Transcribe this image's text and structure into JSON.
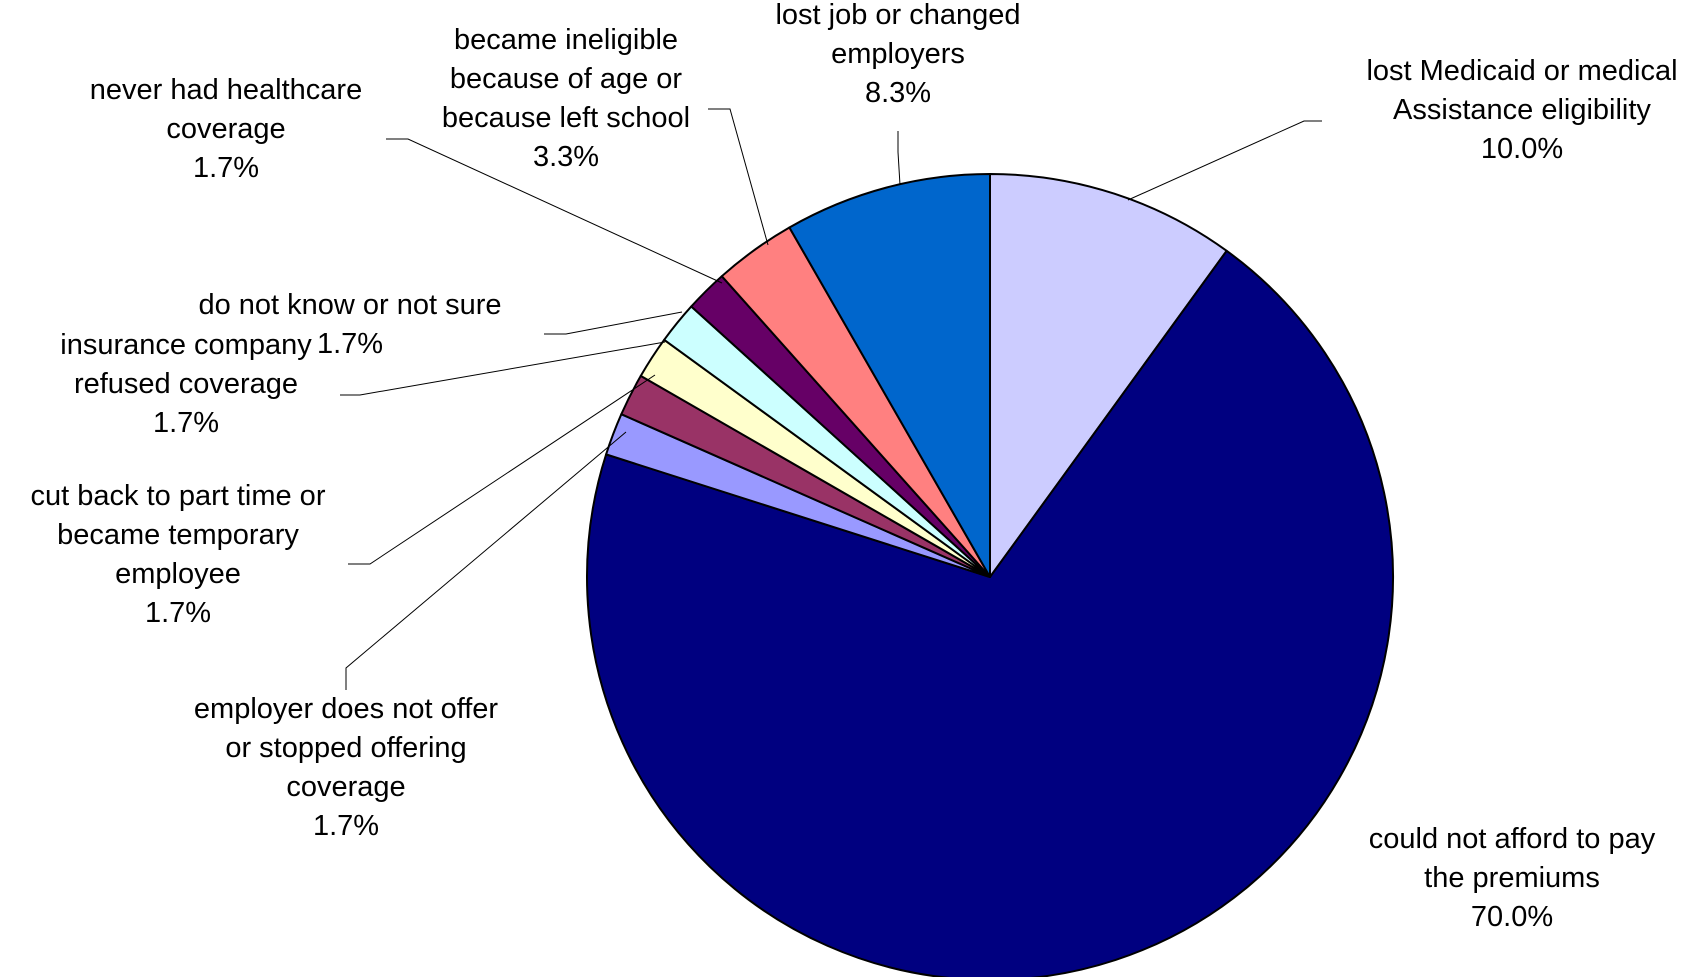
{
  "chart_data": {
    "type": "pie",
    "title": "",
    "start_angle_deg": 270,
    "direction": "clockwise",
    "slices": [
      {
        "label": "lost Medicaid or medical Assistance eligibility",
        "label_lines": [
          "lost Medicaid or medical",
          "Assistance eligibility"
        ],
        "value": 10.0,
        "value_label": "10.0%",
        "color": "#CCCCFF"
      },
      {
        "label": "could not afford to pay the premiums",
        "label_lines": [
          "could not afford to pay",
          "the premiums"
        ],
        "value": 70.0,
        "value_label": "70.0%",
        "color": "#000080"
      },
      {
        "label": "employer does not offer or stopped offering coverage",
        "label_lines": [
          "employer does not offer",
          "or stopped offering",
          "coverage"
        ],
        "value": 1.7,
        "value_label": "1.7%",
        "color": "#9999FF"
      },
      {
        "label": "cut back to part time or became temporary employee",
        "label_lines": [
          "cut back to part time or",
          "became temporary",
          "employee"
        ],
        "value": 1.7,
        "value_label": "1.7%",
        "color": "#993366"
      },
      {
        "label": "insurance company refused coverage",
        "label_lines": [
          "insurance company",
          "refused coverage"
        ],
        "value": 1.7,
        "value_label": "1.7%",
        "color": "#FFFFCC"
      },
      {
        "label": "do not know or not sure",
        "label_lines": [
          "do not know or not sure"
        ],
        "value": 1.7,
        "value_label": "1.7%",
        "color": "#CCFFFF"
      },
      {
        "label": "never had healthcare coverage",
        "label_lines": [
          "never had healthcare",
          "coverage"
        ],
        "value": 1.7,
        "value_label": "1.7%",
        "color": "#660066"
      },
      {
        "label": "became ineligible because of age or because left school",
        "label_lines": [
          "became ineligible",
          "because of age or",
          "because left school"
        ],
        "value": 3.3,
        "value_label": "3.3%",
        "color": "#FF8080"
      },
      {
        "label": "lost job or changed employers",
        "label_lines": [
          "lost job or changed",
          "employers"
        ],
        "value": 8.3,
        "value_label": "8.3%",
        "color": "#0066CC"
      }
    ],
    "legend": "none"
  }
}
